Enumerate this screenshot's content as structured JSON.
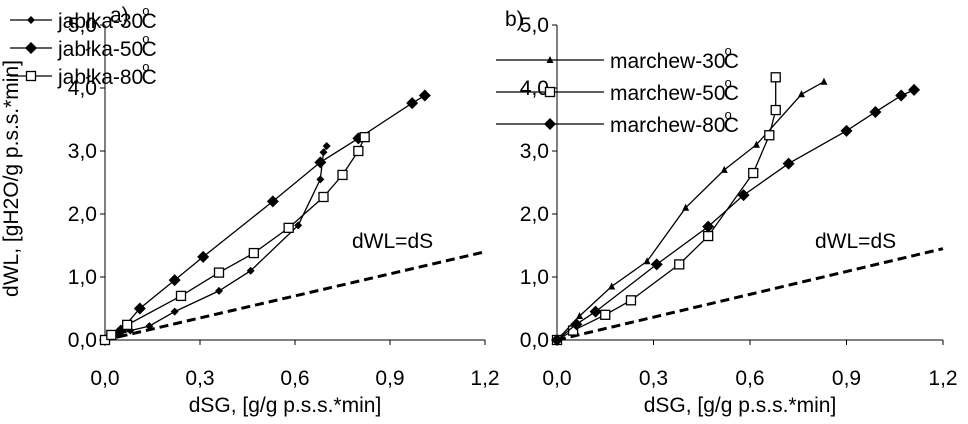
{
  "chart_data": [
    {
      "type": "line",
      "panel_label": "a)",
      "xlabel": "dSG, [g/g p.s.s.*min]",
      "ylabel": "dWL, [gH2O/g p.s.s.*min]",
      "xlim": [
        0,
        1.2
      ],
      "ylim": [
        0,
        5
      ],
      "x_ticks": [
        "0,0",
        "0,3",
        "0,6",
        "0,9",
        "1,2"
      ],
      "y_ticks": [
        "0,0",
        "1,0",
        "2,0",
        "3,0",
        "4,0",
        "5,0"
      ],
      "legend_position": "top-left",
      "annotation": "dWL=dS",
      "reference_line": {
        "name": "dWL=dS",
        "x": [
          0,
          1.2
        ],
        "y": [
          0,
          1.4
        ]
      },
      "series": [
        {
          "name": "jabłka-30°C",
          "marker": "small-diamond",
          "x": [
            0,
            0.04,
            0.08,
            0.14,
            0.22,
            0.36,
            0.46,
            0.61,
            0.68,
            0.69,
            0.7
          ],
          "y": [
            0,
            0.08,
            0.15,
            0.22,
            0.45,
            0.78,
            1.1,
            1.82,
            2.55,
            2.98,
            3.08
          ]
        },
        {
          "name": "jabłka-50°C",
          "marker": "diamond",
          "x": [
            0,
            0.05,
            0.11,
            0.22,
            0.31,
            0.53,
            0.68,
            0.8,
            0.97,
            1.01
          ],
          "y": [
            0,
            0.15,
            0.5,
            0.95,
            1.32,
            2.2,
            2.82,
            3.2,
            3.76,
            3.88
          ]
        },
        {
          "name": "jabłka-80°C",
          "marker": "open-square",
          "x": [
            0,
            0.02,
            0.07,
            0.24,
            0.36,
            0.47,
            0.58,
            0.69,
            0.75,
            0.8,
            0.82
          ],
          "y": [
            0,
            0.08,
            0.24,
            0.7,
            1.07,
            1.38,
            1.78,
            2.27,
            2.62,
            3.0,
            3.22
          ]
        }
      ]
    },
    {
      "type": "line",
      "panel_label": "b)",
      "xlabel": "dSG, [g/g p.s.s.*min]",
      "ylabel": "",
      "xlim": [
        0,
        1.2
      ],
      "ylim": [
        0,
        5
      ],
      "x_ticks": [
        "0,0",
        "0,3",
        "0,6",
        "0,9",
        "1,2"
      ],
      "y_ticks": [
        "0,0",
        "1,0",
        "2,0",
        "3,0",
        "4,0",
        "5,0"
      ],
      "legend_position": "top-left",
      "annotation": "dWL=dS",
      "reference_line": {
        "name": "dWL=dS",
        "x": [
          0,
          1.2
        ],
        "y": [
          0,
          1.45
        ]
      },
      "series": [
        {
          "name": "marchew-30°C",
          "marker": "triangle",
          "x": [
            0,
            0.07,
            0.17,
            0.28,
            0.4,
            0.52,
            0.62,
            0.76,
            0.83
          ],
          "y": [
            0,
            0.38,
            0.85,
            1.25,
            2.1,
            2.7,
            3.1,
            3.9,
            4.1
          ]
        },
        {
          "name": "marchew-50°C",
          "marker": "open-square",
          "x": [
            0,
            0.05,
            0.15,
            0.23,
            0.38,
            0.47,
            0.61,
            0.66,
            0.68,
            0.68
          ],
          "y": [
            0,
            0.15,
            0.4,
            0.63,
            1.2,
            1.65,
            2.65,
            3.25,
            3.65,
            4.17
          ]
        },
        {
          "name": "marchew-80°C",
          "marker": "diamond",
          "x": [
            0,
            0.06,
            0.12,
            0.31,
            0.47,
            0.58,
            0.72,
            0.9,
            0.99,
            1.07,
            1.11
          ],
          "y": [
            0,
            0.25,
            0.45,
            1.2,
            1.8,
            2.3,
            2.8,
            3.32,
            3.62,
            3.88,
            3.97
          ]
        }
      ]
    }
  ]
}
